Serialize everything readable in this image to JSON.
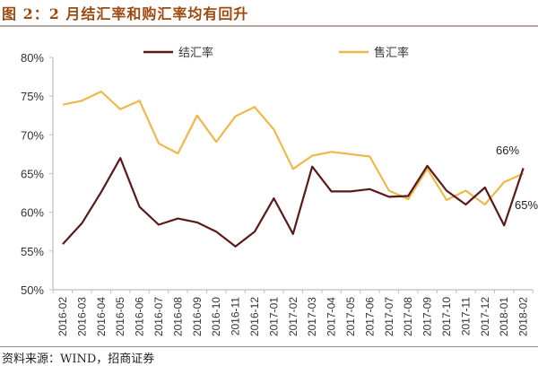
{
  "header": {
    "title": "图 2：2 月结汇率和购汇率均有回升"
  },
  "footer": {
    "source": "资料来源：WIND，招商证券"
  },
  "colors": {
    "settlement": "#5a1a1a",
    "sale": "#efb84a",
    "title": "#9b4a12",
    "axis": "#bfbfbf"
  },
  "chart_data": {
    "type": "line",
    "title": "2 月结汇率和购汇率均有回升",
    "xlabel": "",
    "ylabel": "",
    "ylim": [
      0.5,
      0.8
    ],
    "yticks": [
      "50%",
      "55%",
      "60%",
      "65%",
      "70%",
      "75%",
      "80%"
    ],
    "grid": false,
    "legend_position": "top",
    "categories": [
      "2016-02",
      "2016-03",
      "2016-04",
      "2016-05",
      "2016-06",
      "2016-07",
      "2016-08",
      "2016-09",
      "2016-10",
      "2016-11",
      "2016-12",
      "2017-01",
      "2017-02",
      "2017-03",
      "2017-04",
      "2017-05",
      "2017-06",
      "2017-07",
      "2017-08",
      "2017-09",
      "2017-10",
      "2017-11",
      "2017-12",
      "2018-01",
      "2018-02"
    ],
    "series": [
      {
        "name": "结汇率",
        "color": "#5a1a1a",
        "values": [
          55.9,
          58.6,
          62.6,
          67.0,
          60.7,
          58.4,
          59.2,
          58.7,
          57.5,
          55.6,
          57.5,
          61.8,
          57.2,
          65.9,
          62.7,
          62.7,
          63.0,
          62.0,
          62.1,
          66.0,
          62.8,
          61.0,
          63.2,
          58.3,
          65.7
        ]
      },
      {
        "name": "售汇率",
        "color": "#efb84a",
        "values": [
          73.9,
          74.4,
          75.6,
          73.3,
          74.4,
          68.9,
          67.6,
          72.5,
          69.1,
          72.4,
          73.6,
          70.7,
          65.6,
          67.3,
          67.8,
          67.5,
          67.2,
          62.8,
          61.7,
          65.6,
          61.6,
          62.8,
          61.0,
          63.9,
          65.0
        ]
      }
    ],
    "annotations": [
      {
        "text": "66%",
        "series": "结汇率",
        "category": "2018-02"
      },
      {
        "text": "65%",
        "series": "售汇率",
        "category": "2018-02"
      }
    ]
  }
}
